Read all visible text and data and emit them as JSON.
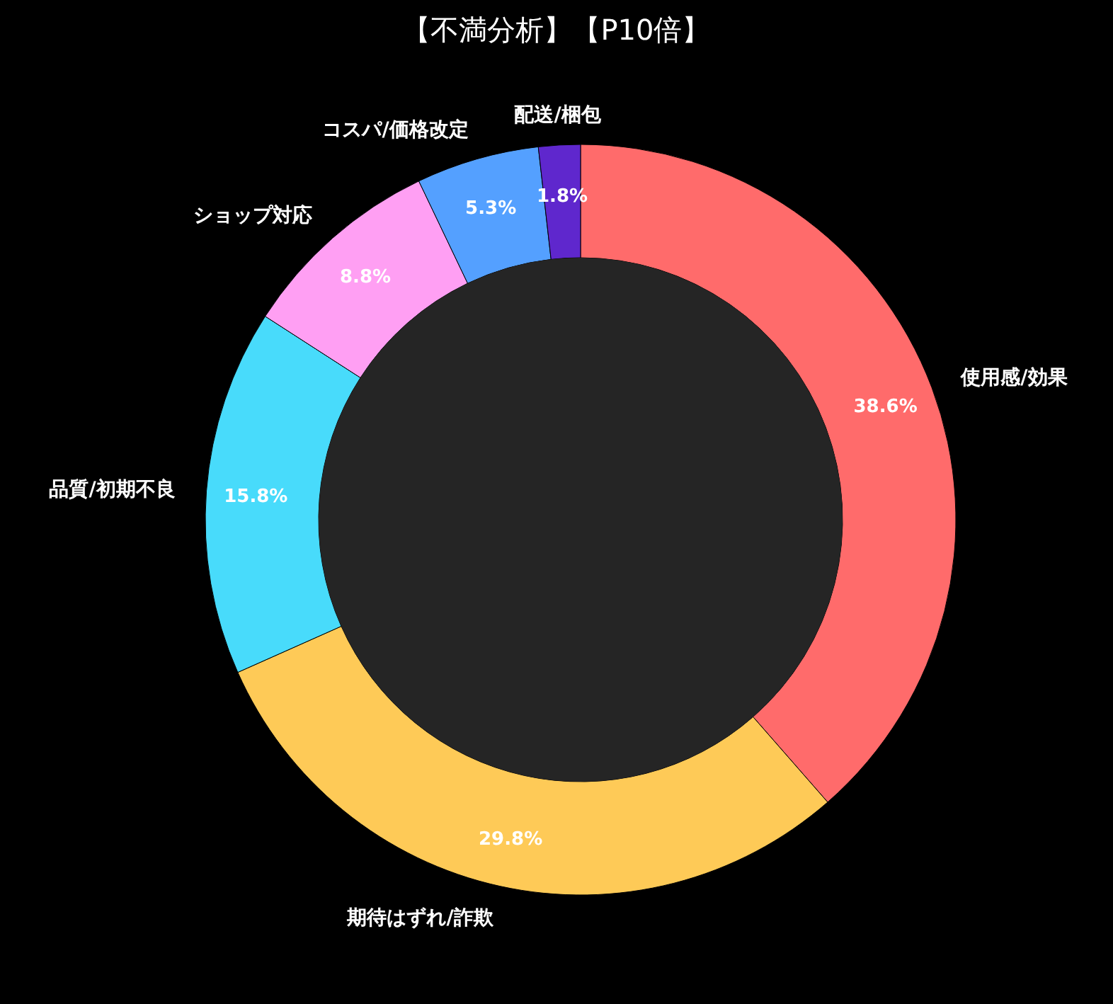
{
  "chart_data": {
    "type": "donut",
    "title": "【不満分析】【P10倍】",
    "categories": [
      "使用感/効果",
      "期待はずれ/詐欺",
      "品質/初期不良",
      "ショップ対応",
      "コスパ/価格改定",
      "配送/梱包"
    ],
    "values": [
      38.6,
      29.8,
      15.8,
      8.8,
      5.3,
      1.8
    ],
    "value_labels": [
      "38.6%",
      "29.8%",
      "15.8%",
      "8.8%",
      "5.3%",
      "1.8%"
    ],
    "colors": [
      "#ff6b6b",
      "#feca57",
      "#48dbfb",
      "#ff9ff3",
      "#54a0ff",
      "#5f27cd"
    ],
    "legend": false
  }
}
